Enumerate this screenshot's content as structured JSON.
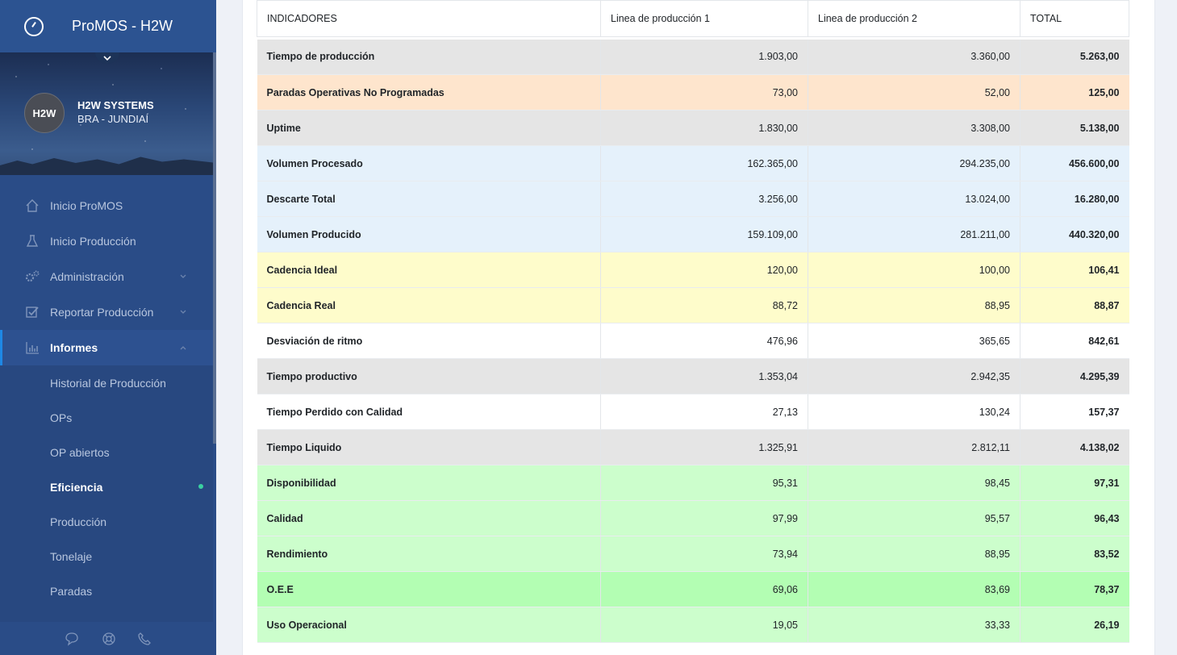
{
  "app": {
    "title": "ProMOS - H2W"
  },
  "profile": {
    "avatar_text": "H2W",
    "company": "H2W SYSTEMS",
    "location": "BRA - JUNDIAÍ"
  },
  "nav": [
    {
      "label": "Inicio ProMOS",
      "icon": "home-icon"
    },
    {
      "label": "Inicio Producción",
      "icon": "flask-icon"
    },
    {
      "label": "Administración",
      "icon": "gears-icon"
    },
    {
      "label": "Reportar Producción",
      "icon": "checkbox-icon"
    },
    {
      "label": "Informes",
      "icon": "chart-icon"
    }
  ],
  "subnav": [
    {
      "label": "Historial de Producción"
    },
    {
      "label": "OPs"
    },
    {
      "label": "OP abiertos"
    },
    {
      "label": "Eficiencia"
    },
    {
      "label": "Producción"
    },
    {
      "label": "Tonelaje"
    },
    {
      "label": "Paradas"
    }
  ],
  "table": {
    "headers": [
      "INDICADORES",
      "Linea de producción 1",
      "Linea de producción 2",
      "TOTAL"
    ],
    "rows": [
      {
        "label": "Tiempo de producción",
        "v1": "1.903,00",
        "v2": "3.360,00",
        "total": "5.263,00",
        "color": "#e5e5e5"
      },
      {
        "label": "Paradas Operativas No Programadas",
        "v1": "73,00",
        "v2": "52,00",
        "total": "125,00",
        "color": "#fee5cd"
      },
      {
        "label": "Uptime",
        "v1": "1.830,00",
        "v2": "3.308,00",
        "total": "5.138,00",
        "color": "#e5e5e5"
      },
      {
        "label": "Volumen Procesado",
        "v1": "162.365,00",
        "v2": "294.235,00",
        "total": "456.600,00",
        "color": "#e5f1fb"
      },
      {
        "label": "Descarte Total",
        "v1": "3.256,00",
        "v2": "13.024,00",
        "total": "16.280,00",
        "color": "#e5f1fb"
      },
      {
        "label": "Volumen Producido",
        "v1": "159.109,00",
        "v2": "281.211,00",
        "total": "440.320,00",
        "color": "#e5f1fb"
      },
      {
        "label": "Cadencia Ideal",
        "v1": "120,00",
        "v2": "100,00",
        "total": "106,41",
        "color": "#fefccb"
      },
      {
        "label": "Cadencia Real",
        "v1": "88,72",
        "v2": "88,95",
        "total": "88,87",
        "color": "#fefccb"
      },
      {
        "label": "Desviación de ritmo",
        "v1": "476,96",
        "v2": "365,65",
        "total": "842,61",
        "color": "#ffffff"
      },
      {
        "label": "Tiempo productivo",
        "v1": "1.353,04",
        "v2": "2.942,35",
        "total": "4.295,39",
        "color": "#e5e5e5"
      },
      {
        "label": "Tiempo Perdido con Calidad",
        "v1": "27,13",
        "v2": "130,24",
        "total": "157,37",
        "color": "#ffffff"
      },
      {
        "label": "Tiempo Liquido",
        "v1": "1.325,91",
        "v2": "2.812,11",
        "total": "4.138,02",
        "color": "#e5e5e5"
      },
      {
        "label": "Disponibilidad",
        "v1": "95,31",
        "v2": "98,45",
        "total": "97,31",
        "color": "#ccfecc"
      },
      {
        "label": "Calidad",
        "v1": "97,99",
        "v2": "95,57",
        "total": "96,43",
        "color": "#ccfecc"
      },
      {
        "label": "Rendimiento",
        "v1": "73,94",
        "v2": "88,95",
        "total": "83,52",
        "color": "#ccfecc"
      },
      {
        "label": "O.E.E",
        "v1": "69,06",
        "v2": "83,69",
        "total": "78,37",
        "color": "#b3feb3"
      },
      {
        "label": "Uso Operacional",
        "v1": "19,05",
        "v2": "33,33",
        "total": "26,19",
        "color": "#ccfecc"
      }
    ]
  }
}
